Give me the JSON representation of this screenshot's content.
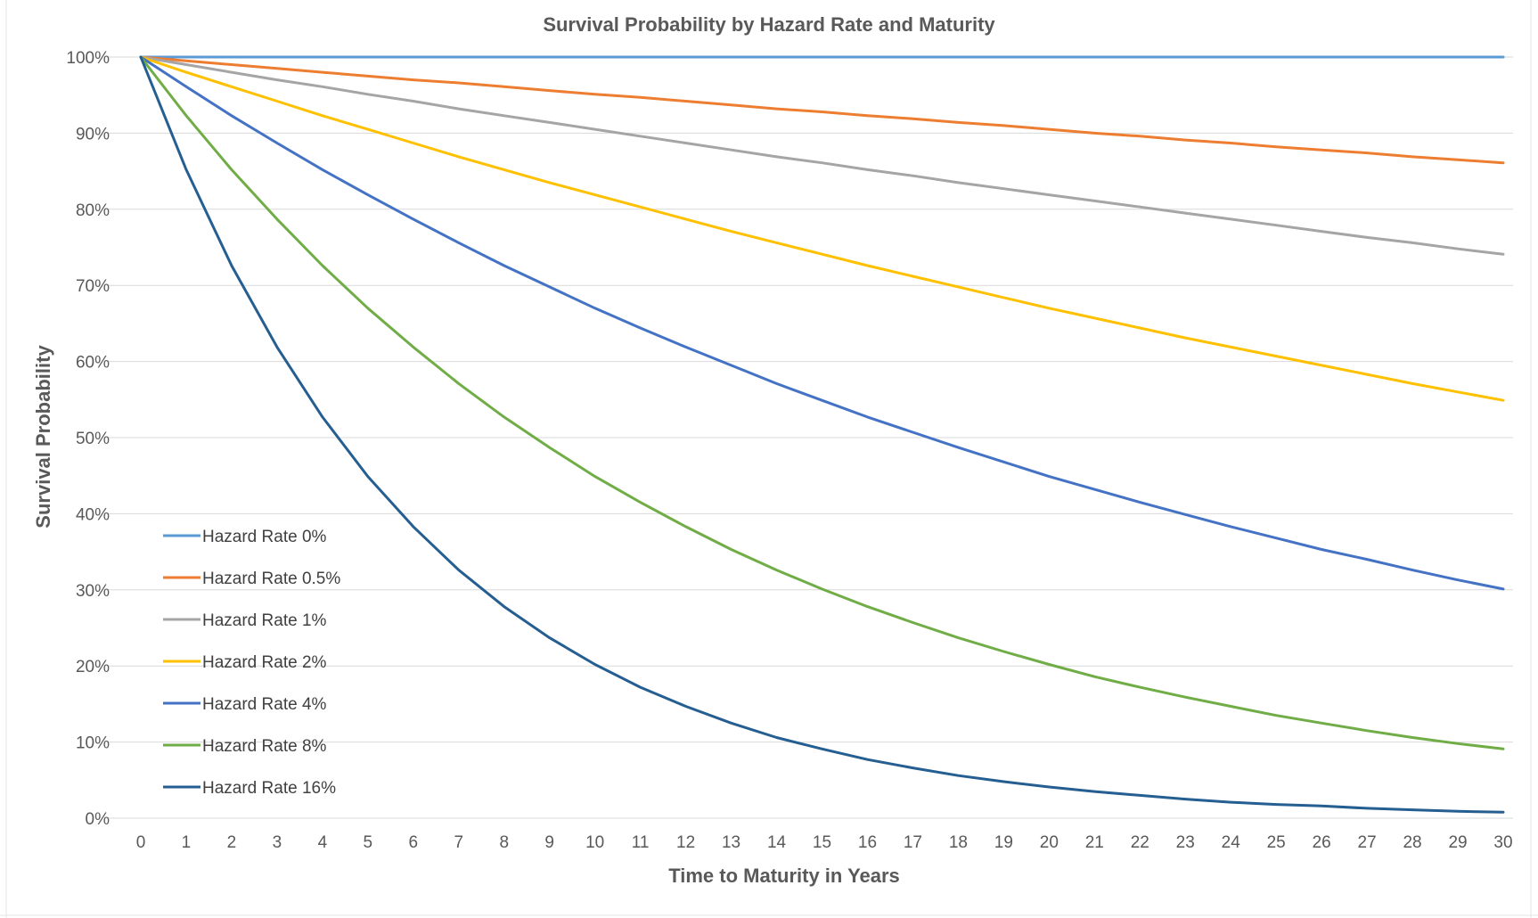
{
  "chart_data": {
    "type": "line",
    "title": "Survival Probability by Hazard Rate and Maturity",
    "xlabel": "Time to Maturity in Years",
    "ylabel": "Survival Probability",
    "x": [
      0,
      1,
      2,
      3,
      4,
      5,
      6,
      7,
      8,
      9,
      10,
      11,
      12,
      13,
      14,
      15,
      16,
      17,
      18,
      19,
      20,
      21,
      22,
      23,
      24,
      25,
      26,
      27,
      28,
      29,
      30
    ],
    "xlim": [
      0,
      30
    ],
    "ylim": [
      0,
      100
    ],
    "y_ticks": [
      "0%",
      "10%",
      "20%",
      "30%",
      "40%",
      "50%",
      "60%",
      "70%",
      "80%",
      "90%",
      "100%"
    ],
    "x_ticks": [
      "0",
      "1",
      "2",
      "3",
      "4",
      "5",
      "6",
      "7",
      "8",
      "9",
      "10",
      "11",
      "12",
      "13",
      "14",
      "15",
      "16",
      "17",
      "18",
      "19",
      "20",
      "21",
      "22",
      "23",
      "24",
      "25",
      "26",
      "27",
      "28",
      "29",
      "30"
    ],
    "grid": "horizontal",
    "legend_position": "lower-left",
    "series": [
      {
        "name": "Hazard Rate 0%",
        "color": "#5b9bd5",
        "values": [
          100,
          100,
          100,
          100,
          100,
          100,
          100,
          100,
          100,
          100,
          100,
          100,
          100,
          100,
          100,
          100,
          100,
          100,
          100,
          100,
          100,
          100,
          100,
          100,
          100,
          100,
          100,
          100,
          100,
          100,
          100
        ]
      },
      {
        "name": "Hazard Rate 0.5%",
        "color": "#ed7d31",
        "values": [
          100,
          99.5,
          99.0,
          98.5,
          98.0,
          97.5,
          97.0,
          96.6,
          96.1,
          95.6,
          95.1,
          94.7,
          94.2,
          93.7,
          93.2,
          92.8,
          92.3,
          91.9,
          91.4,
          91.0,
          90.5,
          90.0,
          89.6,
          89.1,
          88.7,
          88.2,
          87.8,
          87.4,
          86.9,
          86.5,
          86.1
        ]
      },
      {
        "name": "Hazard Rate 1%",
        "color": "#a5a5a5",
        "values": [
          100,
          99.0,
          98.0,
          97.0,
          96.1,
          95.1,
          94.2,
          93.2,
          92.3,
          91.4,
          90.5,
          89.6,
          88.7,
          87.8,
          86.9,
          86.1,
          85.2,
          84.4,
          83.5,
          82.7,
          81.9,
          81.1,
          80.3,
          79.5,
          78.7,
          77.9,
          77.1,
          76.3,
          75.6,
          74.8,
          74.1
        ]
      },
      {
        "name": "Hazard Rate 2%",
        "color": "#ffc000",
        "values": [
          100,
          98.0,
          96.1,
          94.2,
          92.3,
          90.5,
          88.7,
          86.9,
          85.2,
          83.5,
          81.9,
          80.3,
          78.7,
          77.1,
          75.6,
          74.1,
          72.6,
          71.2,
          69.8,
          68.4,
          67.0,
          65.7,
          64.4,
          63.1,
          61.9,
          60.7,
          59.5,
          58.3,
          57.1,
          56.0,
          54.9
        ]
      },
      {
        "name": "Hazard Rate 4%",
        "color": "#4472c4",
        "values": [
          100,
          96.1,
          92.3,
          88.7,
          85.2,
          81.9,
          78.7,
          75.6,
          72.6,
          69.8,
          67.0,
          64.4,
          61.9,
          59.5,
          57.1,
          54.9,
          52.7,
          50.7,
          48.7,
          46.8,
          44.9,
          43.2,
          41.5,
          39.9,
          38.3,
          36.8,
          35.3,
          34.0,
          32.6,
          31.3,
          30.1
        ]
      },
      {
        "name": "Hazard Rate 8%",
        "color": "#70ad47",
        "values": [
          100,
          92.3,
          85.2,
          78.7,
          72.6,
          67.0,
          61.9,
          57.1,
          52.7,
          48.7,
          44.9,
          41.5,
          38.3,
          35.3,
          32.6,
          30.1,
          27.8,
          25.7,
          23.7,
          21.9,
          20.2,
          18.6,
          17.2,
          15.9,
          14.7,
          13.5,
          12.5,
          11.5,
          10.6,
          9.8,
          9.1
        ]
      },
      {
        "name": "Hazard Rate 16%",
        "color": "#255e91",
        "values": [
          100,
          85.2,
          72.6,
          61.9,
          52.7,
          44.9,
          38.3,
          32.6,
          27.8,
          23.7,
          20.2,
          17.2,
          14.7,
          12.5,
          10.6,
          9.1,
          7.7,
          6.6,
          5.6,
          4.8,
          4.1,
          3.5,
          3.0,
          2.5,
          2.1,
          1.8,
          1.6,
          1.3,
          1.1,
          0.9,
          0.8
        ]
      }
    ]
  }
}
